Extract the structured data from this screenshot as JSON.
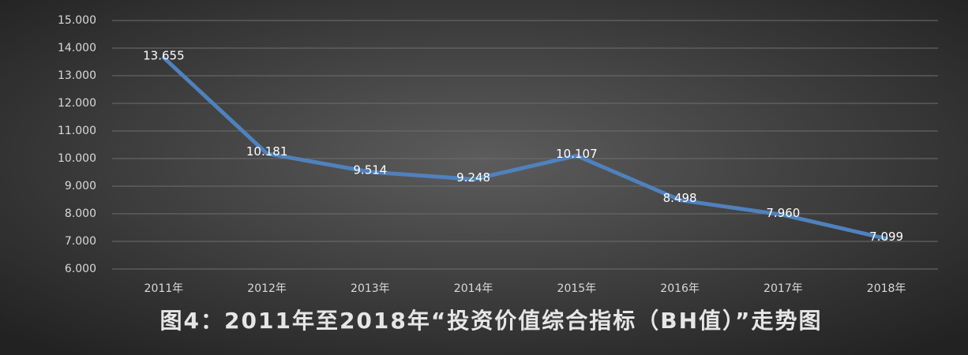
{
  "chart_data": {
    "type": "line",
    "title": "图4：2011年至2018年“投资价值综合指标（BH值）”走势图",
    "categories": [
      "2011年",
      "2012年",
      "2013年",
      "2014年",
      "2015年",
      "2016年",
      "2017年",
      "2018年"
    ],
    "values": [
      13.655,
      10.181,
      9.514,
      9.248,
      10.107,
      8.498,
      7.96,
      7.099
    ],
    "value_labels": [
      "13.655",
      "10.181",
      "9.514",
      "9.248",
      "10.107",
      "8.498",
      "7.960",
      "7.099"
    ],
    "color": "#4f81bd",
    "ylim": [
      6,
      15
    ],
    "yticks": [
      {
        "value": 6,
        "label": "6.000"
      },
      {
        "value": 7,
        "label": "7.000"
      },
      {
        "value": 8,
        "label": "8.000"
      },
      {
        "value": 9,
        "label": "9.000"
      },
      {
        "value": 10,
        "label": "10.000"
      },
      {
        "value": 11,
        "label": "11.000"
      },
      {
        "value": 12,
        "label": "12.000"
      },
      {
        "value": 13,
        "label": "13.000"
      },
      {
        "value": 14,
        "label": "14.000"
      },
      {
        "value": 15,
        "label": "15.000"
      }
    ],
    "grid": true
  }
}
